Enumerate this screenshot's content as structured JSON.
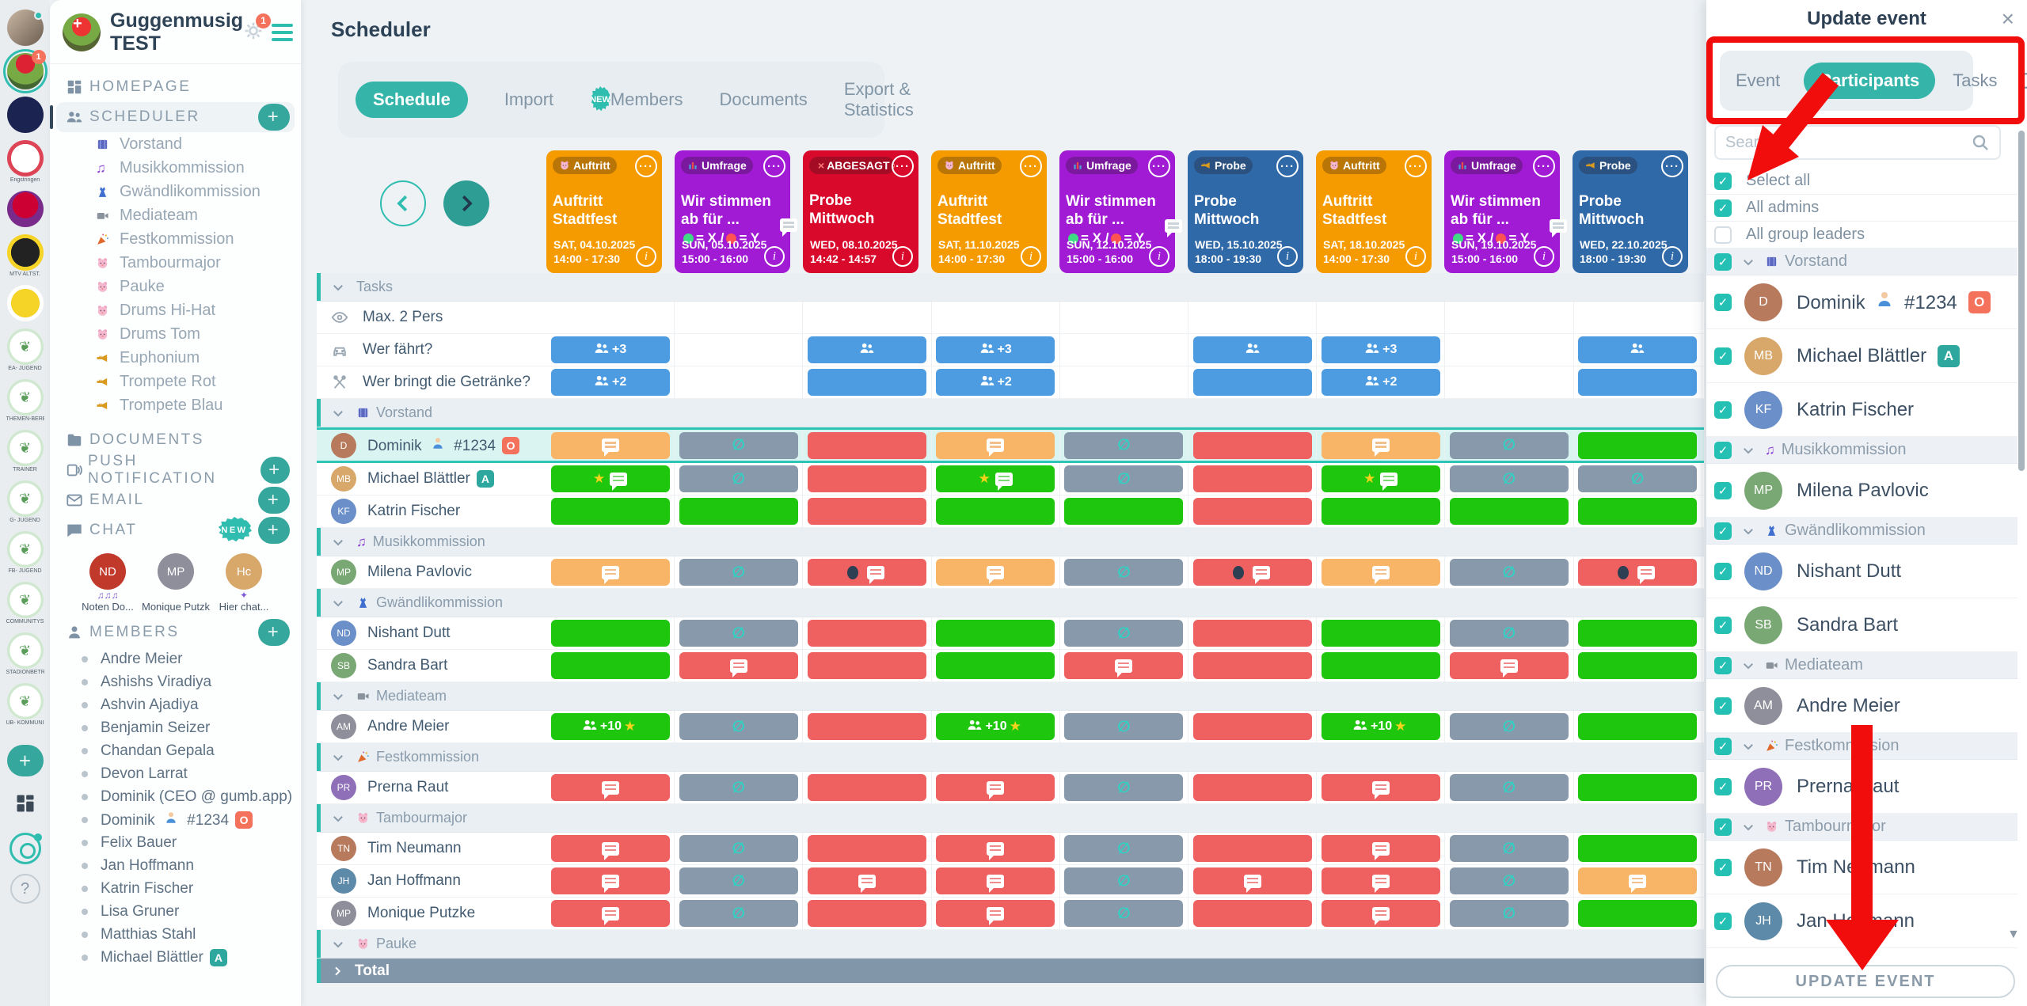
{
  "colors": {
    "accent_teal": "#2fbdb0",
    "annotation_red": "#f20d0d",
    "event_orange": "#f59b00",
    "event_purple": "#a01bd3",
    "event_red": "#d8092b",
    "event_blue": "#3069a8",
    "cell_green": "#1ec70e",
    "cell_red": "#ef6060",
    "cell_gray": "#8799ab",
    "cell_orange": "#f8b568",
    "cell_blue": "#4d9be1",
    "total_bar": "#8296a9"
  },
  "org_strip": {
    "active_badge": "1",
    "items": [
      {
        "kind": "photo",
        "online": true,
        "label": ""
      },
      {
        "kind": "org",
        "active": true,
        "badge": "1",
        "label": ""
      },
      {
        "kind": "navy",
        "label": ""
      },
      {
        "kind": "club",
        "label": "Engstringen"
      },
      {
        "kind": "heart",
        "label": ""
      },
      {
        "kind": "eagle",
        "label": "MTV ALTST."
      },
      {
        "kind": "fgc",
        "label": ""
      },
      {
        "kind": "bird",
        "label": "EA- JUGEND"
      },
      {
        "kind": "bird",
        "label": "THEMEN-BEREICHE"
      },
      {
        "kind": "bird",
        "label": "TRAINER"
      },
      {
        "kind": "bird",
        "label": "G- JUGEND"
      },
      {
        "kind": "bird",
        "label": "FB- JUGEND"
      },
      {
        "kind": "bird",
        "label": "COMMUNITYS"
      },
      {
        "kind": "bird",
        "label": "STADIONBETRIEB"
      },
      {
        "kind": "bird",
        "label": "UB- KOMMUNIKATION"
      }
    ]
  },
  "sidebar": {
    "org_name": "Guggenmusig TEST",
    "gear_badge": "1",
    "menu": [
      {
        "id": "homepage",
        "label": "HOMEPAGE",
        "icon": "grid"
      },
      {
        "id": "scheduler",
        "label": "SCHEDULER",
        "icon": "people",
        "active": true,
        "plus": true
      },
      {
        "id": "documents",
        "label": "DOCUMENTS",
        "icon": "folder"
      },
      {
        "id": "push",
        "label": "PUSH NOTIFICATION",
        "icon": "broadcast",
        "plus": true
      },
      {
        "id": "email",
        "label": "EMAIL",
        "icon": "envelope",
        "plus": true
      },
      {
        "id": "chat",
        "label": "CHAT",
        "icon": "chat",
        "plus": true,
        "new": true
      },
      {
        "id": "members",
        "label": "MEMBERS",
        "icon": "person",
        "plus": true
      }
    ],
    "scheduler_groups": [
      {
        "icon": "vorstand",
        "label": "Vorstand"
      },
      {
        "icon": "music",
        "label": "Musikkommission"
      },
      {
        "icon": "dress",
        "label": "Gwändlikommission"
      },
      {
        "icon": "camera",
        "label": "Mediateam"
      },
      {
        "icon": "party",
        "label": "Festkommission"
      },
      {
        "icon": "drum",
        "label": "Tambourmajor"
      },
      {
        "icon": "drum",
        "label": "Pauke"
      },
      {
        "icon": "drum",
        "label": "Drums Hi-Hat"
      },
      {
        "icon": "drum",
        "label": "Drums Tom"
      },
      {
        "icon": "trumpet",
        "label": "Euphonium"
      },
      {
        "icon": "trumpet",
        "label": "Trompete Rot"
      },
      {
        "icon": "trumpet",
        "label": "Trompete Blau"
      }
    ],
    "chat_items": [
      {
        "label": "Noten Do...",
        "decor": "♫♫♫"
      },
      {
        "label": "Monique Putzke",
        "decor": ""
      },
      {
        "label": "Hier chat...",
        "decor": "✦"
      }
    ],
    "members": [
      {
        "name": "Andre Meier"
      },
      {
        "name": "Ashishs Viradiya"
      },
      {
        "name": "Ashvin Ajadiya"
      },
      {
        "name": "Benjamin Seizer"
      },
      {
        "name": "Chandan Gepala"
      },
      {
        "name": "Devon Larrat"
      },
      {
        "name": "Dominik (CEO @ gumb.app)"
      },
      {
        "name": "Dominik",
        "person": true,
        "tag": "#1234",
        "badge": "O"
      },
      {
        "name": "Felix Bauer"
      },
      {
        "name": "Jan Hoffmann"
      },
      {
        "name": "Katrin Fischer"
      },
      {
        "name": "Lisa Gruner"
      },
      {
        "name": "Matthias Stahl"
      },
      {
        "name": "Michael Blättler",
        "badge": "A"
      }
    ]
  },
  "main": {
    "title": "Scheduler",
    "tabs": [
      {
        "label": "Schedule",
        "active": true
      },
      {
        "label": "Import",
        "new": true
      },
      {
        "label": "Members"
      },
      {
        "label": "Documents"
      },
      {
        "label": "Export & Statistics"
      }
    ],
    "events": [
      {
        "color": "orange",
        "badge": "Auftritt",
        "badge_icon": "drum",
        "title": "Auftritt Stadtfest",
        "date": "SAT, 04.10.2025",
        "time": "14:00 - 17:30",
        "comment": false
      },
      {
        "color": "purple",
        "badge": "Umfrage",
        "badge_icon": "poll",
        "title": "Wir stimmen ab für ...",
        "poll_green": "= X /",
        "poll_red": "= Y",
        "date": "SUN, 05.10.2025",
        "time": "15:00 - 16:00",
        "comment": false
      },
      {
        "color": "red",
        "badge": "ABGESAGT",
        "badge_icon": "cancel",
        "title": "Probe Mittwoch",
        "date": "WED, 08.10.2025",
        "time": "14:42 - 14:57",
        "comment": true
      },
      {
        "color": "orange",
        "badge": "Auftritt",
        "badge_icon": "drum",
        "title": "Auftritt Stadtfest",
        "date": "SAT, 11.10.2025",
        "time": "14:00 - 17:30",
        "comment": false
      },
      {
        "color": "purple",
        "badge": "Umfrage",
        "badge_icon": "poll",
        "title": "Wir stimmen ab für ...",
        "poll_green": "= X /",
        "poll_red": "= Y",
        "date": "SUN, 12.10.2025",
        "time": "15:00 - 16:00",
        "comment": false
      },
      {
        "color": "blue",
        "badge": "Probe",
        "badge_icon": "trumpet",
        "title": "Probe Mittwoch",
        "date": "WED, 15.10.2025",
        "time": "18:00 - 19:30",
        "comment": true
      },
      {
        "color": "orange",
        "badge": "Auftritt",
        "badge_icon": "drum",
        "title": "Auftritt Stadtfest",
        "date": "SAT, 18.10.2025",
        "time": "14:00 - 17:30",
        "comment": false
      },
      {
        "color": "purple",
        "badge": "Umfrage",
        "badge_icon": "poll",
        "title": "Wir stimmen ab für ...",
        "poll_green": "= X /",
        "poll_red": "= Y",
        "date": "SUN, 19.10.2025",
        "time": "15:00 - 16:00",
        "comment": false
      },
      {
        "color": "blue",
        "badge": "Probe",
        "badge_icon": "trumpet",
        "title": "Probe Mittwoch",
        "date": "WED, 22.10.2025",
        "time": "18:00 - 19:30",
        "comment": true
      }
    ],
    "grid": {
      "rows": [
        {
          "kind": "section",
          "icon": "",
          "label": "Tasks"
        },
        {
          "kind": "task",
          "icon": "eye",
          "label": "Max. 2 Pers",
          "cells": [
            "",
            "",
            "",
            "",
            "",
            "",
            "",
            "",
            ""
          ]
        },
        {
          "kind": "task",
          "icon": "car",
          "label": "Wer fährt?",
          "cells": [
            "blue:users+3",
            "",
            "blue:users",
            "blue:users+3",
            "",
            "blue:users",
            "blue:users+3",
            "",
            "blue:users"
          ]
        },
        {
          "kind": "task",
          "icon": "utensils",
          "label": "Wer bringt die Getränke?",
          "cells": [
            "blue:users+2",
            "",
            "blue",
            "blue:users+2",
            "",
            "blue",
            "blue:users+2",
            "",
            "blue"
          ]
        },
        {
          "kind": "section",
          "icon": "vorstand",
          "label": "Vorstand"
        },
        {
          "kind": "member",
          "name": "Dominik",
          "person": true,
          "tag": "#1234",
          "badge": "O",
          "selected": true,
          "cells": [
            "orange:comment",
            "gray:novote",
            "red",
            "orange:comment",
            "gray:novote",
            "red",
            "orange:comment",
            "gray:novote",
            "green"
          ]
        },
        {
          "kind": "member",
          "name": "Michael Blättler",
          "badge": "A",
          "cells": [
            "green:star,comment",
            "gray:novote",
            "red",
            "green:star,comment",
            "gray:novote",
            "red",
            "green:star,comment",
            "gray:novote",
            "gray:novote"
          ]
        },
        {
          "kind": "member",
          "name": "Katrin Fischer",
          "cells": [
            "green",
            "green",
            "red",
            "green",
            "green",
            "red",
            "green",
            "green",
            "green"
          ]
        },
        {
          "kind": "section",
          "icon": "music",
          "label": "Musikkommission"
        },
        {
          "kind": "member",
          "name": "Milena Pavlovic",
          "cells": [
            "orange:comment",
            "gray:novote",
            "red:dot,comment",
            "orange:comment",
            "gray:novote",
            "red:dot,comment",
            "orange:comment",
            "gray:novote",
            "red:dot,comment"
          ]
        },
        {
          "kind": "section",
          "icon": "dress",
          "label": "Gwändlikommission"
        },
        {
          "kind": "member",
          "name": "Nishant Dutt",
          "cells": [
            "green",
            "gray:novote",
            "red",
            "green",
            "gray:novote",
            "red",
            "green",
            "gray:novote",
            "green"
          ]
        },
        {
          "kind": "member",
          "name": "Sandra Bart",
          "cells": [
            "green",
            "red:comment",
            "red",
            "green",
            "red:comment",
            "red",
            "green",
            "red:comment",
            "green"
          ]
        },
        {
          "kind": "section",
          "icon": "camera",
          "label": "Mediateam"
        },
        {
          "kind": "member",
          "name": "Andre Meier",
          "cells": [
            "green:users+10,star",
            "gray:novote",
            "red",
            "green:users+10,star",
            "gray:novote",
            "red",
            "green:users+10,star",
            "gray:novote",
            "green"
          ]
        },
        {
          "kind": "section",
          "icon": "party",
          "label": "Festkommission"
        },
        {
          "kind": "member",
          "name": "Prerna Raut",
          "cells": [
            "red:comment",
            "gray:novote",
            "red",
            "red:comment",
            "gray:novote",
            "red",
            "red:comment",
            "gray:novote",
            "green"
          ]
        },
        {
          "kind": "section",
          "icon": "drum",
          "label": "Tambourmajor"
        },
        {
          "kind": "member",
          "name": "Tim Neumann",
          "cells": [
            "red:comment",
            "gray:novote",
            "red",
            "red:comment",
            "gray:novote",
            "red",
            "red:comment",
            "gray:novote",
            "green"
          ]
        },
        {
          "kind": "member",
          "name": "Jan Hoffmann",
          "cells": [
            "red:comment",
            "gray:novote",
            "red:comment",
            "red:comment",
            "gray:novote",
            "red:comment",
            "red:comment",
            "gray:novote",
            "orange:comment"
          ]
        },
        {
          "kind": "member",
          "name": "Monique Putzke",
          "cells": [
            "red:comment",
            "gray:novote",
            "red",
            "red:comment",
            "gray:novote",
            "red",
            "red:comment",
            "gray:novote",
            "green"
          ]
        },
        {
          "kind": "section",
          "icon": "drum",
          "label": "Pauke"
        },
        {
          "kind": "total",
          "label": "Total"
        }
      ]
    }
  },
  "panel": {
    "title": "Update event",
    "tabs": [
      {
        "label": "Event"
      },
      {
        "label": "Participants",
        "active": true
      },
      {
        "label": "Tasks"
      }
    ],
    "search_placeholder": "Search",
    "options": [
      {
        "label": "Select all",
        "checked": true
      },
      {
        "label": "All admins",
        "checked": true
      },
      {
        "label": "All group leaders",
        "checked": false
      }
    ],
    "list": [
      {
        "type": "group",
        "icon": "vorstand",
        "label": "Vorstand",
        "checked": true
      },
      {
        "type": "member",
        "name": "Dominik",
        "person": true,
        "tag": "#1234",
        "badge": "O",
        "checked": true
      },
      {
        "type": "member",
        "name": "Michael Blättler",
        "badge": "A",
        "checked": true
      },
      {
        "type": "member",
        "name": "Katrin Fischer",
        "checked": true
      },
      {
        "type": "group",
        "icon": "music",
        "label": "Musikkommission",
        "checked": true
      },
      {
        "type": "member",
        "name": "Milena Pavlovic",
        "checked": true
      },
      {
        "type": "group",
        "icon": "dress",
        "label": "Gwändlikommission",
        "checked": true
      },
      {
        "type": "member",
        "name": "Nishant Dutt",
        "checked": true
      },
      {
        "type": "member",
        "name": "Sandra Bart",
        "checked": true
      },
      {
        "type": "group",
        "icon": "camera",
        "label": "Mediateam",
        "checked": true
      },
      {
        "type": "member",
        "name": "Andre Meier",
        "checked": true
      },
      {
        "type": "group",
        "icon": "party",
        "label": "Festkommission",
        "checked": true
      },
      {
        "type": "member",
        "name": "Prerna Raut",
        "checked": true
      },
      {
        "type": "group",
        "icon": "drum",
        "label": "Tambourmajor",
        "checked": true
      },
      {
        "type": "member",
        "name": "Tim Neumann",
        "checked": true
      },
      {
        "type": "member",
        "name": "Jan Hoffmann",
        "checked": true
      }
    ],
    "update_button": "UPDATE EVENT"
  }
}
